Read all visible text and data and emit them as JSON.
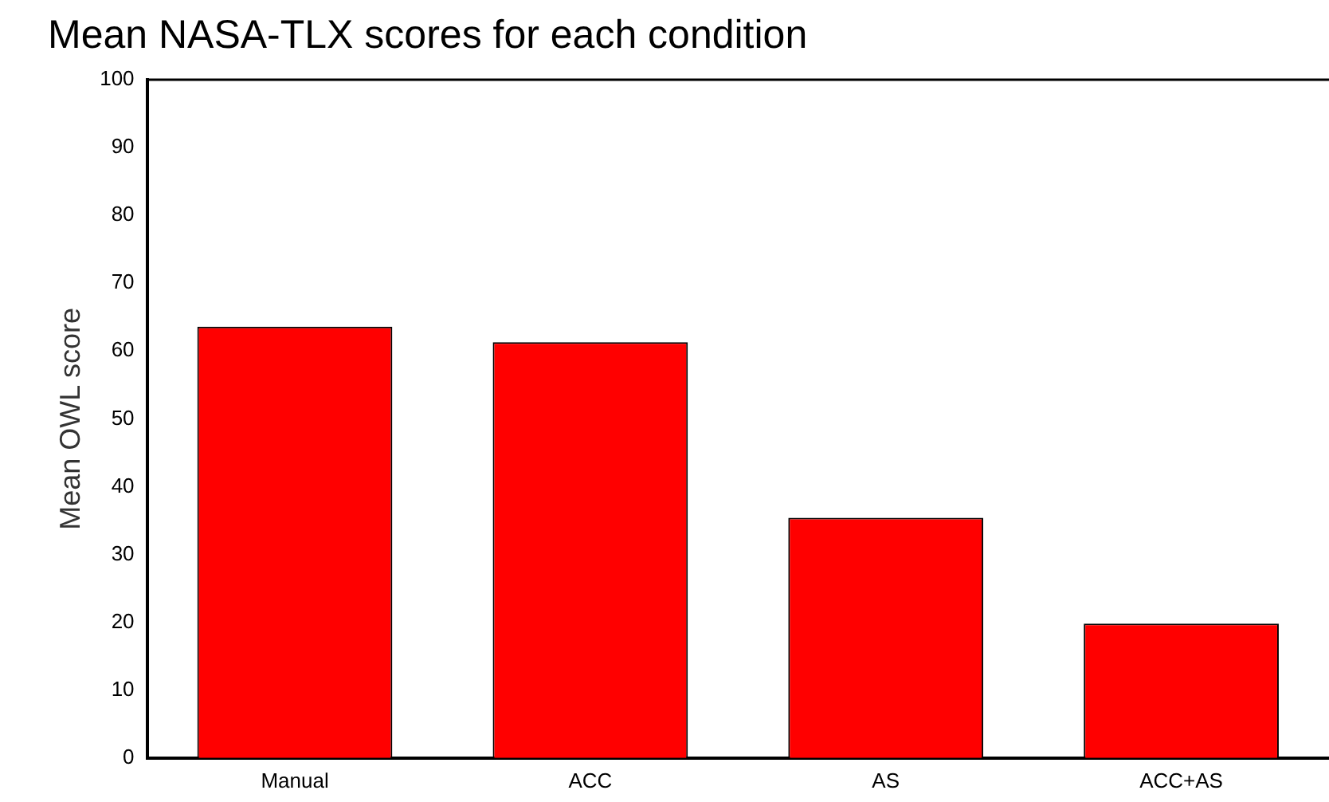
{
  "chart_data": {
    "type": "bar",
    "title": "Mean NASA-TLX scores for each condition",
    "ylabel": "Mean OWL score",
    "categories": [
      "Manual",
      "ACC",
      "AS",
      "ACC+AS"
    ],
    "values": [
      63.6,
      61.3,
      35.4,
      19.8
    ],
    "color": "#ff0000",
    "ylim": [
      0,
      100
    ],
    "yticks": [
      0,
      10,
      20,
      30,
      40,
      50,
      60,
      70,
      80,
      90,
      100
    ],
    "grid": false,
    "legend": false
  }
}
